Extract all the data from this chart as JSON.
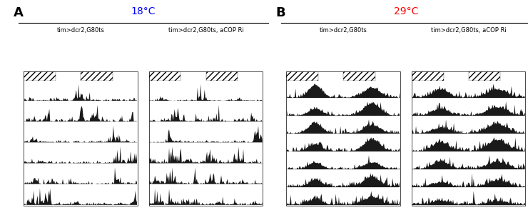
{
  "panel_A_label": "A",
  "panel_B_label": "B",
  "temp_A": "18°C",
  "temp_B": "29°C",
  "temp_A_color": "#0000FF",
  "temp_B_color": "#FF0000",
  "label_ctrl": "tim>dcr2,G80ts",
  "label_kd": "tim>dcr2,G80ts, aCOP Ri",
  "n_rows_A": 6,
  "n_rows_B": 7,
  "bg_color": "#FFFFFF",
  "actogram_color": "#1a1a1a",
  "border_color": "#000000",
  "header_bar_color": "#000000",
  "seed_A_ctrl": 42,
  "seed_A_kd": 99,
  "seed_B_ctrl": 7,
  "seed_B_kd": 13,
  "figure_width": 7.4,
  "figure_height": 2.94
}
